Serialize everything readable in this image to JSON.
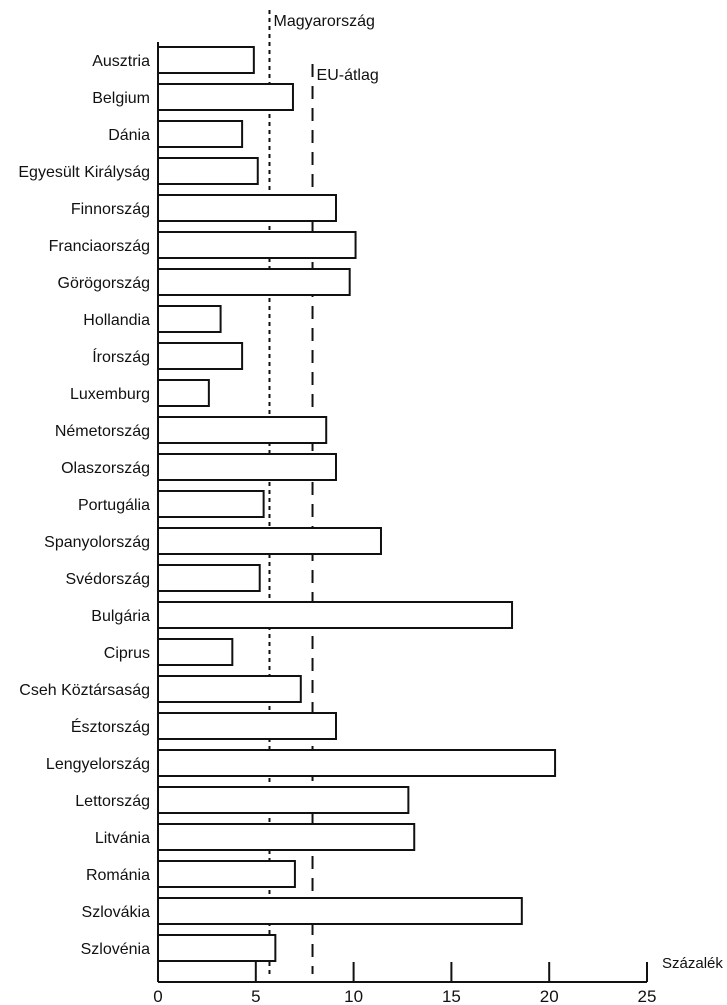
{
  "chart_data": {
    "type": "bar",
    "orientation": "horizontal",
    "title": "",
    "xlabel": "Százalék",
    "ylabel": "",
    "xlim": [
      0,
      25
    ],
    "xticks": [
      0,
      5,
      10,
      15,
      20,
      25
    ],
    "grid": false,
    "legend": "none",
    "categories": [
      "Ausztria",
      "Belgium",
      "Dánia",
      "Egyesült Királyság",
      "Finnország",
      "Franciaország",
      "Görögország",
      "Hollandia",
      "Írország",
      "Luxemburg",
      "Németország",
      "Olaszország",
      "Portugália",
      "Spanyolország",
      "Svédország",
      "Bulgária",
      "Ciprus",
      "Cseh Köztársaság",
      "Észtország",
      "Lengyelország",
      "Lettország",
      "Litvánia",
      "Románia",
      "Szlovákia",
      "Szlovénia"
    ],
    "values": [
      4.9,
      6.9,
      4.3,
      5.1,
      9.1,
      10.1,
      9.8,
      3.2,
      4.3,
      2.6,
      8.6,
      9.1,
      5.4,
      11.4,
      5.2,
      18.1,
      3.8,
      7.3,
      9.1,
      20.3,
      12.8,
      13.1,
      7.0,
      18.6,
      6.0
    ],
    "reference_lines": [
      {
        "label": "Magyarország",
        "value": 5.7,
        "style": "dotted"
      },
      {
        "label": "EU-átlag",
        "value": 7.9,
        "style": "dashed"
      }
    ]
  }
}
